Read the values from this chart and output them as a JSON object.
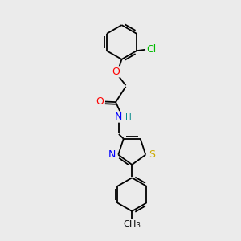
{
  "bg_color": "#ebebeb",
  "bond_color": "#000000",
  "atom_colors": {
    "O": "#ff0000",
    "N": "#0000ff",
    "S": "#ccaa00",
    "Cl": "#00bb00",
    "H": "#008888",
    "C": "#000000"
  },
  "font_size": 9,
  "lw": 1.3,
  "figsize": [
    3.0,
    3.0
  ],
  "dpi": 100
}
